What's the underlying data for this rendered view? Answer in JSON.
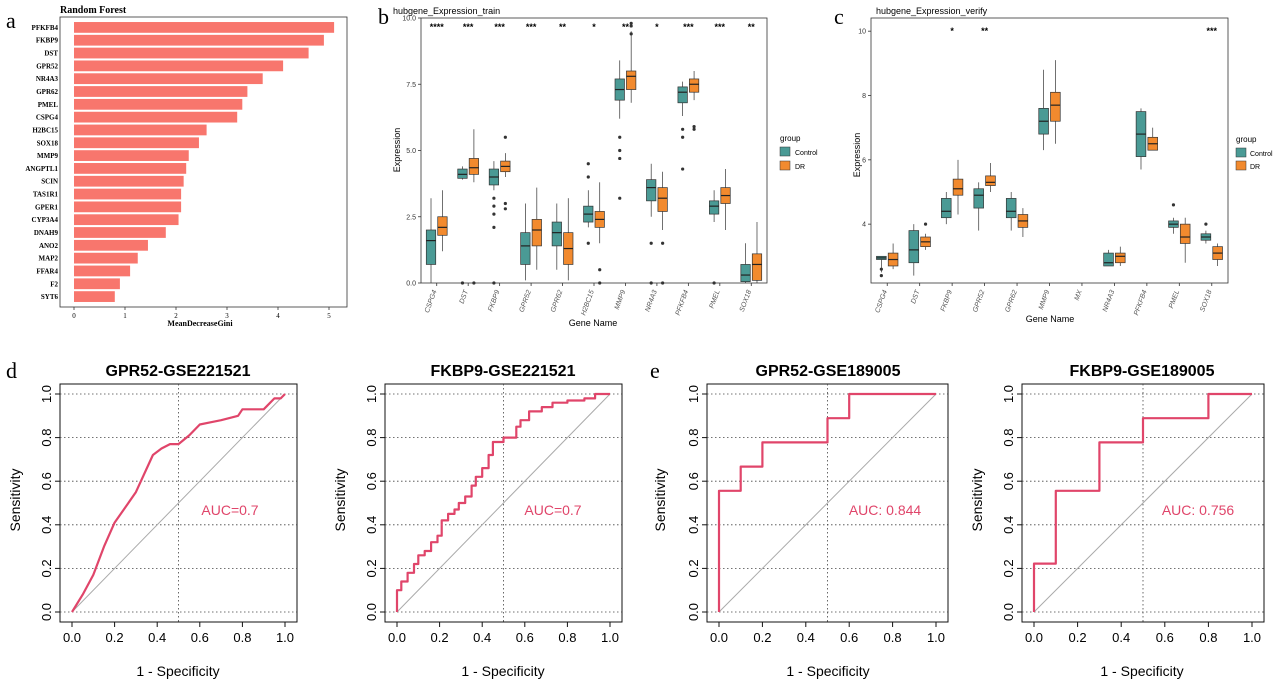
{
  "panel_labels": {
    "a": "a",
    "b": "b",
    "c": "c",
    "d": "d",
    "e": "e"
  },
  "colors": {
    "rf_bar": "#F8766D",
    "control": "#4A9A95",
    "dr": "#F28A2E",
    "roc": "#E0456A",
    "panel_bg": "#EBEBEB"
  },
  "chart_data": [
    {
      "id": "a",
      "type": "bar",
      "title": "Random Forest",
      "xlabel": "MeanDecreaseGini",
      "ylabel": "",
      "orientation": "horizontal",
      "categories": [
        "PFKFB4",
        "FKBP9",
        "DST",
        "GPR52",
        "NR4A3",
        "GPR62",
        "PMEL",
        "CSPG4",
        "H2BC15",
        "SOX18",
        "MMP9",
        "ANGPTL1",
        "SCIN",
        "TAS1R1",
        "GPER1",
        "CYP3A4",
        "DNAH9",
        "ANO2",
        "MAP2",
        "FFAR4",
        "F2",
        "SYT6"
      ],
      "values": [
        5.1,
        4.9,
        4.6,
        4.1,
        3.7,
        3.4,
        3.3,
        3.2,
        2.6,
        2.45,
        2.25,
        2.2,
        2.15,
        2.1,
        2.1,
        2.05,
        1.8,
        1.45,
        1.25,
        1.1,
        0.9,
        0.8
      ],
      "xticks": [
        "0",
        "1",
        "2",
        "3",
        "4",
        "5"
      ],
      "xlim": [
        0,
        5.2
      ]
    },
    {
      "id": "b",
      "type": "box",
      "title": "hubgene_Expression_train",
      "xlabel": "Gene Name",
      "ylabel": "Expression",
      "ylim": [
        0,
        10
      ],
      "yticks": [
        "0.0",
        "2.5",
        "5.0",
        "7.5",
        "10.0"
      ],
      "legend": {
        "title": "group",
        "items": [
          "Control",
          "DR"
        ],
        "position": "right"
      },
      "categories": [
        "CSPG4",
        "DST",
        "FKBP9",
        "GPR52",
        "GPR62",
        "H2BC15",
        "MMP9",
        "NR4A3",
        "PFKFB4",
        "PMEL",
        "SOX18"
      ],
      "significance": [
        "****",
        "***",
        "***",
        "***",
        "**",
        "*",
        "**",
        "*",
        "***",
        "***",
        "**"
      ],
      "series": [
        {
          "name": "Control",
          "boxes": [
            [
              0.0,
              0.7,
              1.6,
              2.0,
              3.2
            ],
            [
              3.9,
              3.95,
              4.1,
              4.3,
              4.4
            ],
            [
              3.5,
              3.7,
              4.0,
              4.3,
              4.6
            ],
            [
              0.1,
              0.7,
              1.4,
              1.9,
              3.0
            ],
            [
              0.5,
              1.4,
              1.9,
              2.3,
              3.0
            ],
            [
              2.1,
              2.3,
              2.6,
              2.9,
              3.5
            ],
            [
              6.2,
              6.9,
              7.3,
              7.7,
              8.4
            ],
            [
              2.5,
              3.1,
              3.6,
              3.9,
              4.5
            ],
            [
              6.3,
              6.8,
              7.2,
              7.4,
              7.6
            ],
            [
              2.3,
              2.6,
              2.9,
              3.1,
              3.5
            ],
            [
              0.0,
              0.05,
              0.3,
              0.7,
              1.5
            ]
          ],
          "outliers": [
            [],
            [
              0.0
            ],
            [
              2.1,
              2.6,
              2.9,
              3.2,
              0.0
            ],
            [],
            [],
            [
              4.0,
              4.5,
              1.5
            ],
            [
              5.5,
              5.0,
              4.7,
              3.2
            ],
            [
              1.5,
              0.0
            ],
            [
              5.5,
              5.8,
              4.3
            ],
            [
              0.0
            ],
            []
          ]
        },
        {
          "name": "DR",
          "boxes": [
            [
              1.2,
              1.8,
              2.1,
              2.5,
              3.5
            ],
            [
              3.8,
              4.1,
              4.35,
              4.7,
              5.8
            ],
            [
              4.0,
              4.2,
              4.4,
              4.6,
              4.9
            ],
            [
              0.5,
              1.4,
              2.0,
              2.4,
              3.6
            ],
            [
              0.1,
              0.7,
              1.3,
              1.9,
              3.2
            ],
            [
              1.5,
              2.1,
              2.4,
              2.7,
              3.8
            ],
            [
              6.8,
              7.3,
              7.8,
              8.0,
              9.5
            ],
            [
              2.0,
              2.7,
              3.2,
              3.6,
              4.2
            ],
            [
              6.9,
              7.2,
              7.5,
              7.7,
              8.0
            ],
            [
              2.0,
              3.0,
              3.3,
              3.6,
              4.3
            ],
            [
              0.0,
              0.1,
              0.7,
              1.1,
              2.3
            ]
          ],
          "outliers": [
            [],
            [
              0.0
            ],
            [
              5.5,
              3.0,
              2.8
            ],
            [],
            [],
            [
              0.5,
              0.0
            ],
            [
              9.7,
              9.8,
              9.4
            ],
            [
              1.5,
              0.0
            ],
            [
              5.9,
              5.8
            ],
            [],
            []
          ]
        }
      ]
    },
    {
      "id": "c",
      "type": "box",
      "title": "hubgene_Expression_verify",
      "xlabel": "Gene Name",
      "ylabel": "Expression",
      "ylim": [
        2,
        10
      ],
      "yticks": [
        "4",
        "6",
        "8",
        "10"
      ],
      "legend": {
        "title": "group",
        "items": [
          "Control",
          "DR"
        ],
        "position": "right"
      },
      "categories": [
        "CSPG4",
        "DST",
        "FKBP9",
        "GPR52",
        "GPR62",
        "MMP9",
        "MX",
        "NR4A3",
        "PFKFB4",
        "PMEL",
        "SOX18"
      ],
      "significance": [
        "",
        "",
        "*",
        "**",
        "",
        "",
        "",
        "",
        "",
        "",
        "***"
      ],
      "series": [
        {
          "name": "Control",
          "boxes": [
            [
              2.5,
              2.9,
              2.95,
              3.0,
              3.0
            ],
            [
              2.4,
              2.8,
              3.2,
              3.8,
              4.0
            ],
            [
              4.0,
              4.2,
              4.4,
              4.8,
              5.0
            ],
            [
              3.8,
              4.5,
              4.9,
              5.1,
              5.3
            ],
            [
              3.8,
              4.2,
              4.4,
              4.8,
              5.0
            ],
            [
              6.3,
              6.8,
              7.2,
              7.6,
              8.8
            ],
            null,
            [
              2.7,
              2.7,
              2.8,
              3.1,
              3.2
            ],
            [
              5.7,
              6.1,
              6.8,
              7.5,
              7.6
            ],
            [
              3.7,
              3.9,
              4.0,
              4.1,
              4.2
            ],
            [
              3.4,
              3.5,
              3.6,
              3.7,
              3.8
            ]
          ],
          "outliers": [
            [
              2.4,
              2.6
            ],
            [],
            [],
            [],
            [],
            [],
            [],
            [],
            [],
            [
              4.6
            ],
            [
              4.0
            ]
          ]
        },
        {
          "name": "DR",
          "boxes": [
            [
              2.6,
              2.7,
              2.9,
              3.1,
              3.4
            ],
            [
              3.2,
              3.3,
              3.45,
              3.6,
              3.7
            ],
            [
              4.3,
              4.9,
              5.1,
              5.4,
              6.0
            ],
            [
              5.0,
              5.2,
              5.3,
              5.5,
              5.9
            ],
            [
              3.6,
              3.9,
              4.1,
              4.3,
              4.5
            ],
            [
              6.5,
              7.2,
              7.7,
              8.1,
              9.1
            ],
            null,
            [
              2.7,
              2.8,
              3.0,
              3.1,
              3.3
            ],
            [
              6.3,
              6.3,
              6.5,
              6.7,
              7.0
            ],
            [
              2.8,
              3.4,
              3.6,
              4.0,
              4.2
            ],
            [
              2.7,
              2.9,
              3.1,
              3.3,
              3.4
            ]
          ],
          "outliers": [
            [],
            [
              4.0
            ],
            [],
            [],
            [],
            [],
            [],
            [],
            [],
            [],
            []
          ]
        }
      ]
    },
    {
      "id": "d1",
      "type": "line",
      "title": "GPR52-GSE221521",
      "xlabel": "1 - Specificity",
      "ylabel": "Sensitivity",
      "annotation": "AUC=0.7",
      "xlim": [
        0,
        1
      ],
      "ylim": [
        0,
        1
      ],
      "xticks": [
        "0.0",
        "0.2",
        "0.4",
        "0.6",
        "0.8",
        "1.0"
      ],
      "yticks": [
        "0.0",
        "0.2",
        "0.4",
        "0.6",
        "0.8",
        "1.0"
      ],
      "x": [
        0,
        0.05,
        0.1,
        0.15,
        0.2,
        0.25,
        0.3,
        0.38,
        0.42,
        0.46,
        0.5,
        0.55,
        0.6,
        0.65,
        0.7,
        0.78,
        0.8,
        0.84,
        0.9,
        0.95,
        0.98,
        1.0
      ],
      "y": [
        0,
        0.08,
        0.17,
        0.3,
        0.41,
        0.48,
        0.55,
        0.72,
        0.75,
        0.77,
        0.77,
        0.81,
        0.86,
        0.87,
        0.88,
        0.9,
        0.93,
        0.93,
        0.93,
        0.98,
        0.98,
        1.0
      ]
    },
    {
      "id": "d2",
      "type": "line",
      "title": "FKBP9-GSE221521",
      "xlabel": "1 - Specificity",
      "ylabel": "Sensitivity",
      "annotation": "AUC=0.7",
      "xlim": [
        0,
        1
      ],
      "ylim": [
        0,
        1
      ],
      "xticks": [
        "0.0",
        "0.2",
        "0.4",
        "0.6",
        "0.8",
        "1.0"
      ],
      "yticks": [
        "0.0",
        "0.2",
        "0.4",
        "0.6",
        "0.8",
        "1.0"
      ],
      "x": [
        0,
        0,
        0.02,
        0.02,
        0.05,
        0.05,
        0.08,
        0.08,
        0.1,
        0.1,
        0.13,
        0.13,
        0.16,
        0.16,
        0.19,
        0.19,
        0.21,
        0.21,
        0.24,
        0.24,
        0.27,
        0.27,
        0.29,
        0.29,
        0.32,
        0.32,
        0.35,
        0.35,
        0.37,
        0.37,
        0.4,
        0.4,
        0.43,
        0.43,
        0.45,
        0.45,
        0.5,
        0.5,
        0.56,
        0.56,
        0.58,
        0.58,
        0.62,
        0.62,
        0.68,
        0.68,
        0.73,
        0.73,
        0.8,
        0.8,
        0.88,
        0.88,
        0.93,
        0.93,
        1.0
      ],
      "y": [
        0,
        0.1,
        0.1,
        0.14,
        0.14,
        0.18,
        0.18,
        0.22,
        0.22,
        0.26,
        0.26,
        0.28,
        0.28,
        0.32,
        0.32,
        0.35,
        0.35,
        0.42,
        0.42,
        0.45,
        0.45,
        0.47,
        0.47,
        0.5,
        0.5,
        0.53,
        0.53,
        0.58,
        0.58,
        0.62,
        0.62,
        0.66,
        0.66,
        0.72,
        0.72,
        0.78,
        0.78,
        0.8,
        0.8,
        0.85,
        0.85,
        0.88,
        0.88,
        0.92,
        0.92,
        0.94,
        0.94,
        0.96,
        0.96,
        0.97,
        0.97,
        0.98,
        0.98,
        1.0,
        1.0
      ]
    },
    {
      "id": "e1",
      "type": "line",
      "title": "GPR52-GSE189005",
      "xlabel": "1 - Specificity",
      "ylabel": "Sensitivity",
      "annotation": "AUC: 0.844",
      "xlim": [
        0,
        1
      ],
      "ylim": [
        0,
        1
      ],
      "xticks": [
        "0.0",
        "0.2",
        "0.4",
        "0.6",
        "0.8",
        "1.0"
      ],
      "yticks": [
        "0.0",
        "0.2",
        "0.4",
        "0.6",
        "0.8",
        "1.0"
      ],
      "x": [
        0,
        0,
        0.1,
        0.1,
        0.2,
        0.2,
        0.5,
        0.5,
        0.6,
        0.6,
        1.0
      ],
      "y": [
        0,
        0.556,
        0.556,
        0.667,
        0.667,
        0.778,
        0.778,
        0.889,
        0.889,
        1.0,
        1.0
      ]
    },
    {
      "id": "e2",
      "type": "line",
      "title": "FKBP9-GSE189005",
      "xlabel": "1 - Specificity",
      "ylabel": "Sensitivity",
      "annotation": "AUC: 0.756",
      "xlim": [
        0,
        1
      ],
      "ylim": [
        0,
        1
      ],
      "xticks": [
        "0.0",
        "0.2",
        "0.4",
        "0.6",
        "0.8",
        "1.0"
      ],
      "yticks": [
        "0.0",
        "0.2",
        "0.4",
        "0.6",
        "0.8",
        "1.0"
      ],
      "x": [
        0,
        0,
        0.1,
        0.1,
        0.3,
        0.3,
        0.5,
        0.5,
        0.8,
        0.8,
        1.0
      ],
      "y": [
        0,
        0.222,
        0.222,
        0.556,
        0.556,
        0.778,
        0.778,
        0.889,
        0.889,
        1.0,
        1.0
      ]
    }
  ]
}
